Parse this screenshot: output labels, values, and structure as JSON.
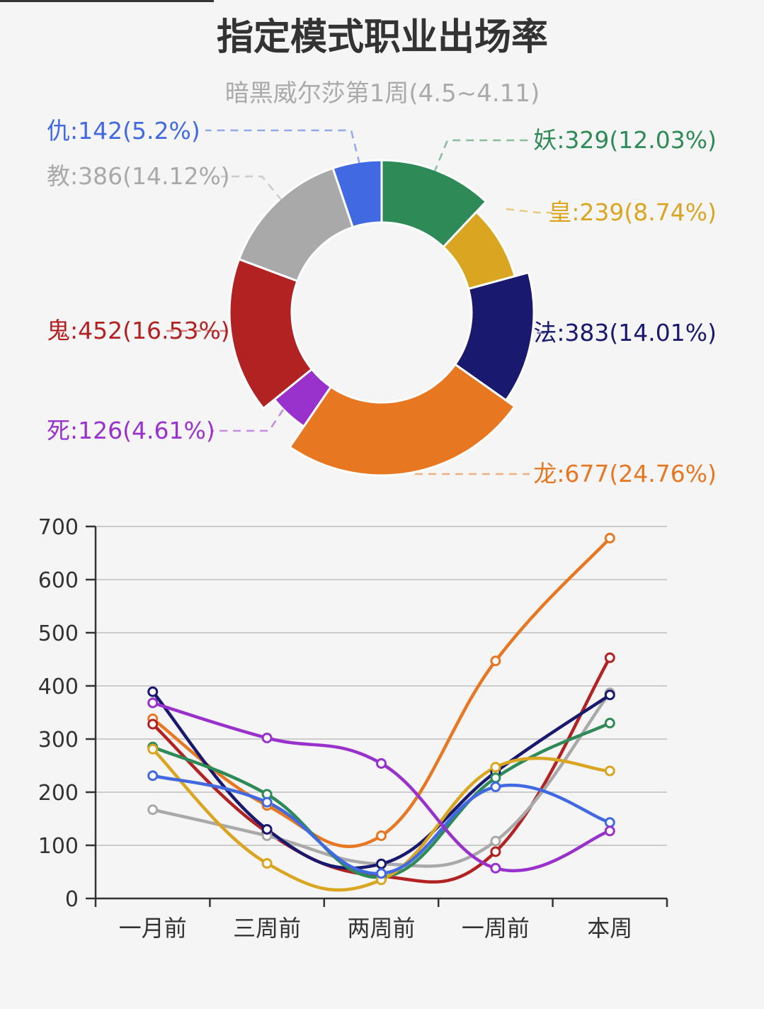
{
  "chart_data": [
    {
      "type": "pie",
      "variant": "donut",
      "title": "指定模式职业出场率",
      "subtitle": "暗黑威尔莎第1周(4.5~4.11)",
      "slices": [
        {
          "name": "妖",
          "value": 329,
          "percent": "12.03%",
          "label": "妖:329(12.03%)",
          "color": "#2e8b57"
        },
        {
          "name": "皇",
          "value": 239,
          "percent": "8.74%",
          "label": "皇:239(8.74%)",
          "color": "#daa520"
        },
        {
          "name": "法",
          "value": 383,
          "percent": "14.01%",
          "label": "法:383(14.01%)",
          "color": "#191970"
        },
        {
          "name": "龙",
          "value": 677,
          "percent": "24.76%",
          "label": "龙:677(24.76%)",
          "color": "#e87722"
        },
        {
          "name": "死",
          "value": 126,
          "percent": "4.61%",
          "label": "死:126(4.61%)",
          "color": "#9932cc"
        },
        {
          "name": "鬼",
          "value": 452,
          "percent": "16.53%",
          "label": "鬼:452(16.53%)",
          "color": "#b22222"
        },
        {
          "name": "教",
          "value": 386,
          "percent": "14.12%",
          "label": "教:386(14.12%)",
          "color": "#a9a9a9"
        },
        {
          "name": "仇",
          "value": 142,
          "percent": "5.2%",
          "label": "仇:142(5.2%)",
          "color": "#4169e1"
        }
      ]
    },
    {
      "type": "line",
      "smooth": true,
      "categories": [
        "一月前",
        "三周前",
        "两周前",
        "一周前",
        "本周"
      ],
      "ylim": [
        0,
        700
      ],
      "yticks": [
        "0",
        "100",
        "200",
        "300",
        "400",
        "500",
        "600",
        "700"
      ],
      "grid": true,
      "series": [
        {
          "color": "#e87722",
          "values": [
            338,
            175,
            118,
            447,
            678
          ]
        },
        {
          "color": "#b22222",
          "values": [
            328,
            125,
            42,
            88,
            453
          ]
        },
        {
          "color": "#a9a9a9",
          "values": [
            167,
            118,
            65,
            108,
            387
          ]
        },
        {
          "color": "#191970",
          "values": [
            389,
            130,
            65,
            238,
            383
          ]
        },
        {
          "color": "#2e8b57",
          "values": [
            285,
            196,
            40,
            227,
            330
          ]
        },
        {
          "color": "#daa520",
          "values": [
            281,
            66,
            35,
            247,
            240
          ]
        },
        {
          "color": "#4169e1",
          "values": [
            231,
            181,
            47,
            210,
            143
          ]
        },
        {
          "color": "#9932cc",
          "values": [
            368,
            302,
            254,
            57,
            127
          ]
        }
      ]
    }
  ]
}
